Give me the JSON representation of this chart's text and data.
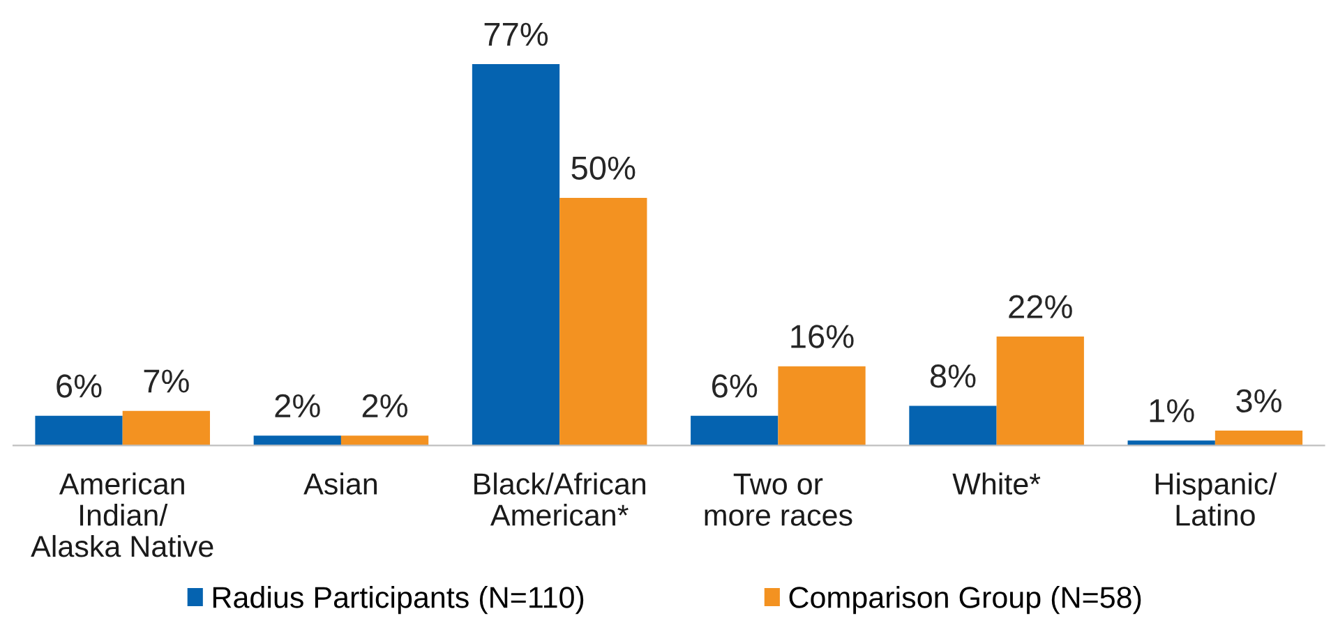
{
  "chart_data": {
    "type": "bar",
    "categories": [
      "American\nIndian/\nAlaska Native",
      "Asian",
      "Black/African\nAmerican*",
      "Two or\nmore races",
      "White*",
      "Hispanic/\nLatino"
    ],
    "series": [
      {
        "name": "Radius Participants (N=110)",
        "color": "#0563b0",
        "values": [
          6,
          2,
          77,
          6,
          8,
          1
        ],
        "value_labels": [
          "6%",
          "2%",
          "77%",
          "6%",
          "8%",
          "1%"
        ]
      },
      {
        "name": "Comparison Group (N=58)",
        "color": "#f39221",
        "values": [
          7,
          2,
          50,
          16,
          22,
          3
        ],
        "value_labels": [
          "7%",
          "2%",
          "50%",
          "16%",
          "22%",
          "3%"
        ]
      }
    ],
    "grid": false,
    "legend": "bottom"
  }
}
